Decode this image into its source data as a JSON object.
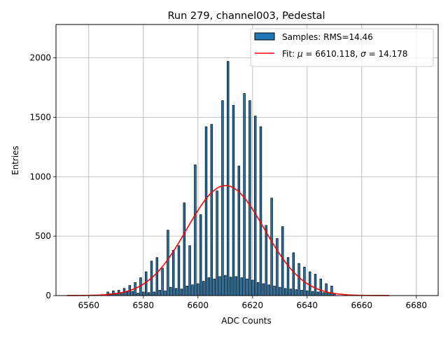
{
  "chart_data": {
    "type": "bar",
    "title": "Run 279, channel003, Pedestal",
    "xlabel": "ADC Counts",
    "ylabel": "Entries",
    "xlim": [
      6548,
      6688
    ],
    "ylim": [
      0,
      2280
    ],
    "xticks": [
      6560,
      6580,
      6600,
      6620,
      6640,
      6660,
      6680
    ],
    "yticks": [
      0,
      500,
      1000,
      1500,
      2000
    ],
    "grid": true,
    "legend_position": "top-right",
    "series": [
      {
        "name": "Samples: RMS=14.46",
        "kind": "histogram",
        "color": "#1f77b4",
        "edge_color": "#000000",
        "x": [
          6567,
          6568,
          6569,
          6570,
          6571,
          6572,
          6573,
          6574,
          6575,
          6576,
          6577,
          6578,
          6579,
          6580,
          6581,
          6582,
          6583,
          6584,
          6585,
          6586,
          6587,
          6588,
          6589,
          6590,
          6591,
          6592,
          6593,
          6594,
          6595,
          6596,
          6597,
          6598,
          6599,
          6600,
          6601,
          6602,
          6603,
          6604,
          6605,
          6606,
          6607,
          6608,
          6609,
          6610,
          6611,
          6612,
          6613,
          6614,
          6615,
          6616,
          6617,
          6618,
          6619,
          6620,
          6621,
          6622,
          6623,
          6624,
          6625,
          6626,
          6627,
          6628,
          6629,
          6630,
          6631,
          6632,
          6633,
          6634,
          6635,
          6636,
          6637,
          6638,
          6639,
          6640,
          6641,
          6642,
          6643,
          6644,
          6645,
          6646,
          6647,
          6648,
          6649,
          6650
        ],
        "values": [
          30,
          15,
          40,
          20,
          45,
          25,
          60,
          30,
          85,
          35,
          110,
          20,
          150,
          30,
          200,
          25,
          290,
          30,
          320,
          45,
          230,
          40,
          550,
          70,
          380,
          60,
          420,
          55,
          780,
          80,
          420,
          90,
          1100,
          100,
          680,
          120,
          1420,
          150,
          1440,
          140,
          880,
          160,
          1640,
          170,
          1970,
          155,
          1600,
          160,
          1090,
          150,
          1700,
          140,
          1640,
          130,
          1510,
          110,
          1420,
          100,
          590,
          90,
          820,
          80,
          480,
          70,
          580,
          60,
          320,
          55,
          360,
          50,
          270,
          45,
          240,
          40,
          200,
          35,
          180,
          30,
          140,
          25,
          100,
          20,
          80,
          15
        ]
      },
      {
        "name": "Fit: μ = 6610.118, σ = 14.178",
        "kind": "gaussian-fit",
        "color": "#ff0000",
        "mu": 6610.118,
        "sigma": 14.178,
        "amplitude": 925,
        "x_range": [
          6552,
          6670
        ]
      }
    ],
    "legend": {
      "samples_label": "Samples: RMS=14.46",
      "fit_label_prefix": "Fit: ",
      "fit_mu_symbol": "μ",
      "fit_mu_text": " = 6610.118, ",
      "fit_sigma_symbol": "σ",
      "fit_sigma_text": " = 14.178"
    }
  }
}
